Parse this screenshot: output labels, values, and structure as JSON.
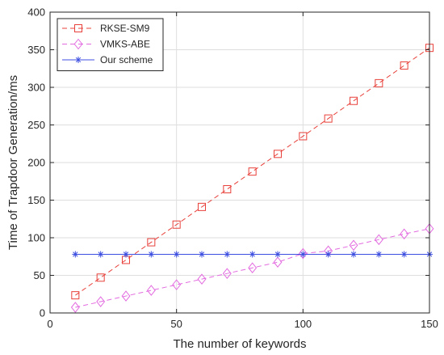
{
  "chart_data": {
    "type": "line",
    "title": "",
    "xlabel": "The number of keywords",
    "ylabel": "Time of Trapdoor Generation/ms",
    "xlim": [
      0,
      150
    ],
    "ylim": [
      0,
      400
    ],
    "xticks": [
      0,
      50,
      100,
      150
    ],
    "yticks": [
      0,
      50,
      100,
      150,
      200,
      250,
      300,
      350,
      400
    ],
    "grid": true,
    "legend_position": "top-left",
    "x": [
      10,
      20,
      30,
      40,
      50,
      60,
      70,
      80,
      90,
      100,
      110,
      120,
      130,
      140,
      150
    ],
    "series": [
      {
        "name": "RKSE-SM9",
        "color": "#e8403a",
        "marker": "square",
        "line": "dashed",
        "values": [
          23.5,
          47,
          70.5,
          94,
          117.5,
          141,
          164.5,
          188,
          211.5,
          235,
          258.5,
          282,
          305.5,
          329,
          352.5
        ]
      },
      {
        "name": "VMKS-ABE",
        "color": "#e36be0",
        "marker": "diamond",
        "line": "dashed",
        "values": [
          7.5,
          15,
          22.5,
          30,
          37.5,
          45,
          52.5,
          60,
          67.5,
          79,
          82.5,
          90,
          97.5,
          105,
          112
        ]
      },
      {
        "name": "Our scheme",
        "color": "#3d4fe0",
        "marker": "asterisk",
        "line": "solid",
        "values": [
          78,
          78,
          78,
          78,
          78,
          78,
          78,
          78,
          78,
          78,
          78,
          78,
          78,
          78,
          78
        ]
      }
    ]
  }
}
